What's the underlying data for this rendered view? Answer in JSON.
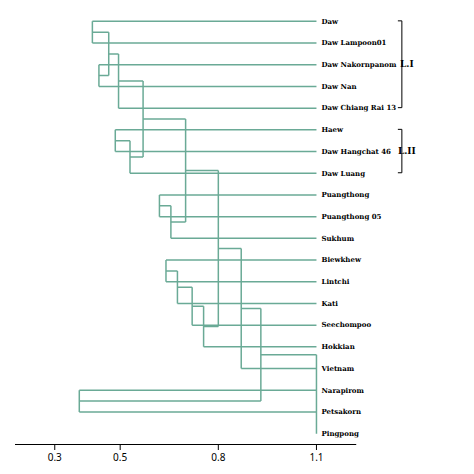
{
  "chart_data": {
    "type": "dendrogram",
    "categories": [
      "Daw",
      "Daw Lampoon01",
      "Daw Nakornpanom",
      "Daw Nan",
      "Daw Chiang Rai 13",
      "Haew",
      "Daw Hangchat 46",
      "Daw Luang",
      "Puangthong",
      "Puangthong 05",
      "Sukhum",
      "Biewkhew",
      "Lintchi",
      "Kati",
      "Seechompoo",
      "Hokkian",
      "Vietnam",
      "Narapirom",
      "Petsakorn",
      "Pingpong"
    ],
    "leaf_x": 1.1,
    "tree": {
      "height": 1.1,
      "children": [
        {
          "height": 0.93,
          "children": [
            {
              "height": 0.87,
              "children": [
                {
                  "height": 0.8,
                  "children": [
                    {
                      "height": 0.7,
                      "children": [
                        {
                          "height": 0.57,
                          "children": [
                            {
                              "height": 0.495,
                              "children": [
                                {
                                  "height": 0.465,
                                  "children": [
                                    {
                                      "height": 0.415,
                                      "children": [
                                        "Daw",
                                        "Daw Lampoon01"
                                      ]
                                    },
                                    {
                                      "height": 0.435,
                                      "children": [
                                        "Daw Nakornpanom",
                                        "Daw Nan"
                                      ]
                                    }
                                  ]
                                },
                                "Daw Chiang Rai 13"
                              ]
                            },
                            {
                              "height": 0.53,
                              "children": [
                                {
                                  "height": 0.485,
                                  "children": [
                                    "Haew",
                                    "Daw Hangchat 46"
                                  ]
                                },
                                "Daw Luang"
                              ]
                            }
                          ]
                        },
                        {
                          "height": 0.655,
                          "children": [
                            {
                              "height": 0.62,
                              "children": [
                                "Puangthong",
                                "Puangthong 05"
                              ]
                            },
                            "Sukhum"
                          ]
                        }
                      ]
                    },
                    {
                      "height": 0.755,
                      "children": [
                        {
                          "height": 0.72,
                          "children": [
                            {
                              "height": 0.675,
                              "children": [
                                {
                                  "height": 0.64,
                                  "children": [
                                    "Biewkhew",
                                    "Lintchi"
                                  ]
                                },
                                "Kati"
                              ]
                            },
                            "Seechompoo"
                          ]
                        },
                        "Hokkian"
                      ]
                    }
                  ]
                },
                "Vietnam"
              ]
            },
            {
              "height": 0.375,
              "children": [
                "Narapirom",
                "Petsakorn"
              ]
            }
          ]
        },
        "Pingpong"
      ]
    },
    "groups": [
      {
        "label": "L.I",
        "leaves": [
          "Daw",
          "Daw Lampoon01",
          "Daw Nakornpanom",
          "Daw Nan",
          "Daw Chiang Rai 13"
        ]
      },
      {
        "label": "L.II",
        "leaves": [
          "Haew",
          "Daw Hangchat 46",
          "Daw Luang"
        ]
      }
    ],
    "color": "#6aaa96",
    "xlim": [
      0.18,
      1.22
    ],
    "xticks": [
      0.3,
      0.5,
      0.8,
      1.1
    ],
    "tick_labels": "x"
  }
}
